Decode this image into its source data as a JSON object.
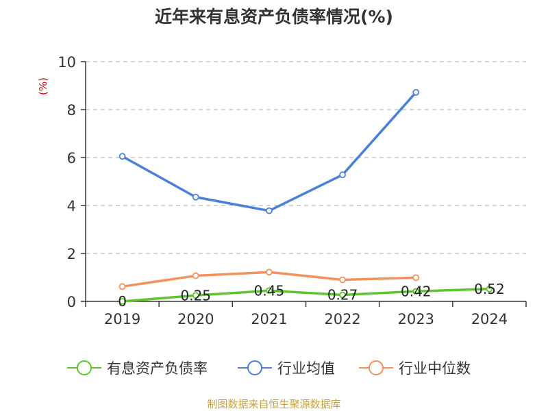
{
  "chart_data": {
    "type": "line",
    "title": "近年来有息资产负债率情况(%)",
    "ylabel": "(%)",
    "xlabel": "",
    "categories": [
      "2019",
      "2020",
      "2021",
      "2022",
      "2023",
      "2024"
    ],
    "ylim": [
      0,
      10
    ],
    "yticks": [
      0,
      2,
      4,
      6,
      8,
      10
    ],
    "grid": true,
    "legend_position": "bottom",
    "series": [
      {
        "name": "有息资产负债率",
        "color": "#5ec52e",
        "values": [
          0,
          0.25,
          0.45,
          0.27,
          0.42,
          0.52
        ],
        "labels": [
          "0",
          "0.25",
          "0.45",
          "0.27",
          "0.42",
          "0.52"
        ]
      },
      {
        "name": "行业均值",
        "color": "#4a80da",
        "values": [
          6.05,
          4.35,
          3.78,
          5.28,
          8.72,
          null
        ]
      },
      {
        "name": "行业中位数",
        "color": "#f4905c",
        "values": [
          0.62,
          1.07,
          1.22,
          0.9,
          0.99,
          null
        ]
      }
    ]
  },
  "footer": {
    "source": "制图数据来自恒生聚源数据库"
  }
}
